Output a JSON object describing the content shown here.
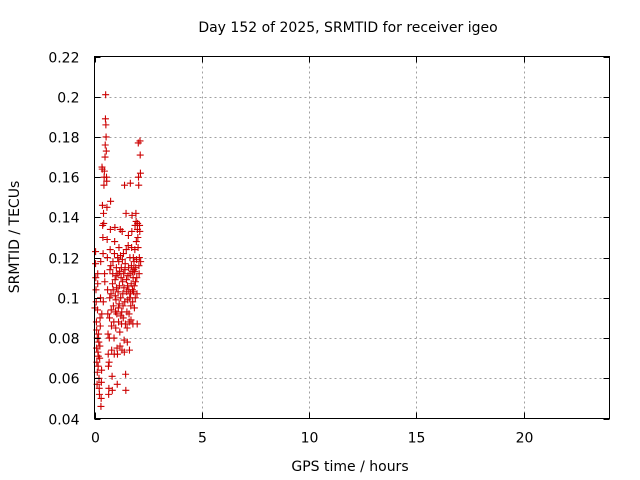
{
  "chart_data": {
    "type": "scatter",
    "title": "Day 152 of 2025, SRMTID for receiver igeo",
    "xlabel": "GPS time / hours",
    "ylabel": "SRMTID / TECUs",
    "xlim": [
      0,
      24
    ],
    "ylim": [
      0.04,
      0.22
    ],
    "xticks": [
      0,
      5,
      10,
      15,
      20
    ],
    "xtick_labels": [
      "0",
      "5",
      "10",
      "15",
      "20"
    ],
    "yticks": [
      0.04,
      0.06,
      0.08,
      0.1,
      0.12,
      0.14,
      0.16,
      0.18,
      0.2,
      0.22
    ],
    "ytick_labels": [
      "0.04",
      "0.06",
      "0.08",
      "0.1",
      "0.12",
      "0.14",
      "0.16",
      "0.18",
      "0.2",
      "0.22"
    ],
    "grid": true,
    "marker": "plus",
    "color": "#cc0000",
    "series": [
      {
        "points": [
          [
            0.02,
            0.095
          ],
          [
            0.05,
            0.117
          ],
          [
            0.05,
            0.123
          ],
          [
            0.06,
            0.11
          ],
          [
            0.07,
            0.104
          ],
          [
            0.08,
            0.098
          ],
          [
            0.09,
            0.088
          ],
          [
            0.1,
            0.084
          ],
          [
            0.1,
            0.075
          ],
          [
            0.11,
            0.068
          ],
          [
            0.12,
            0.057
          ],
          [
            0.13,
            0.063
          ],
          [
            0.13,
            0.08
          ],
          [
            0.14,
            0.094
          ],
          [
            0.15,
            0.112
          ],
          [
            0.15,
            0.107
          ],
          [
            0.16,
            0.073
          ],
          [
            0.17,
            0.066
          ],
          [
            0.18,
            0.071
          ],
          [
            0.19,
            0.082
          ],
          [
            0.2,
            0.078
          ],
          [
            0.21,
            0.06
          ],
          [
            0.22,
            0.055
          ],
          [
            0.23,
            0.052
          ],
          [
            0.24,
            0.07
          ],
          [
            0.25,
            0.076
          ],
          [
            0.26,
            0.09
          ],
          [
            0.27,
            0.086
          ],
          [
            0.28,
            0.1
          ],
          [
            0.29,
            0.118
          ],
          [
            0.3,
            0.046
          ],
          [
            0.31,
            0.05
          ],
          [
            0.32,
            0.058
          ],
          [
            0.33,
            0.064
          ],
          [
            0.34,
            0.092
          ],
          [
            0.35,
            0.165
          ],
          [
            0.36,
            0.164
          ],
          [
            0.37,
            0.146
          ],
          [
            0.38,
            0.136
          ],
          [
            0.39,
            0.13
          ],
          [
            0.4,
            0.122
          ],
          [
            0.41,
            0.098
          ],
          [
            0.42,
            0.142
          ],
          [
            0.43,
            0.137
          ],
          [
            0.44,
            0.156
          ],
          [
            0.45,
            0.16
          ],
          [
            0.46,
            0.163
          ],
          [
            0.47,
            0.112
          ],
          [
            0.48,
            0.108
          ],
          [
            0.49,
            0.17
          ],
          [
            0.5,
            0.176
          ],
          [
            0.51,
            0.189
          ],
          [
            0.52,
            0.201
          ],
          [
            0.53,
            0.186
          ],
          [
            0.54,
            0.18
          ],
          [
            0.55,
            0.173
          ],
          [
            0.56,
            0.16
          ],
          [
            0.57,
            0.158
          ],
          [
            0.58,
            0.145
          ],
          [
            0.59,
            0.129
          ],
          [
            0.6,
            0.12
          ],
          [
            0.61,
            0.104
          ],
          [
            0.62,
            0.092
          ],
          [
            0.63,
            0.082
          ],
          [
            0.64,
            0.072
          ],
          [
            0.65,
            0.066
          ],
          [
            0.66,
            0.052
          ],
          [
            0.67,
            0.055
          ],
          [
            0.68,
            0.068
          ],
          [
            0.69,
            0.08
          ],
          [
            0.7,
            0.09
          ],
          [
            0.71,
            0.1
          ],
          [
            0.72,
            0.114
          ],
          [
            0.73,
            0.124
          ],
          [
            0.74,
            0.134
          ],
          [
            0.75,
            0.148
          ],
          [
            0.76,
            0.116
          ],
          [
            0.77,
            0.102
          ],
          [
            0.78,
            0.094
          ],
          [
            0.79,
            0.086
          ],
          [
            0.8,
            0.074
          ],
          [
            0.82,
            0.061
          ],
          [
            0.83,
            0.054
          ],
          [
            0.84,
            0.107
          ],
          [
            0.85,
            0.112
          ],
          [
            0.86,
            0.118
          ],
          [
            0.87,
            0.104
          ],
          [
            0.88,
            0.096
          ],
          [
            0.9,
            0.088
          ],
          [
            0.91,
            0.08
          ],
          [
            0.92,
            0.072
          ],
          [
            0.93,
            0.122
          ],
          [
            0.94,
            0.128
          ],
          [
            0.95,
            0.135
          ],
          [
            0.96,
            0.109
          ],
          [
            0.97,
            0.101
          ],
          [
            0.98,
            0.093
          ],
          [
            0.99,
            0.085
          ],
          [
            1.0,
            0.099
          ],
          [
            1.01,
            0.111
          ],
          [
            1.02,
            0.115
          ],
          [
            1.03,
            0.105
          ],
          [
            1.04,
            0.092
          ],
          [
            1.05,
            0.075
          ],
          [
            1.06,
            0.057
          ],
          [
            1.07,
            0.072
          ],
          [
            1.08,
            0.12
          ],
          [
            1.09,
            0.112
          ],
          [
            1.1,
            0.103
          ],
          [
            1.11,
            0.095
          ],
          [
            1.12,
            0.088
          ],
          [
            1.13,
            0.118
          ],
          [
            1.14,
            0.125
          ],
          [
            1.15,
            0.097
          ],
          [
            1.16,
            0.106
          ],
          [
            1.17,
            0.113
          ],
          [
            1.18,
            0.083
          ],
          [
            1.19,
            0.076
          ],
          [
            1.2,
            0.134
          ],
          [
            1.21,
            0.121
          ],
          [
            1.22,
            0.1
          ],
          [
            1.23,
            0.091
          ],
          [
            1.24,
            0.11
          ],
          [
            1.25,
            0.115
          ],
          [
            1.26,
            0.087
          ],
          [
            1.27,
            0.093
          ],
          [
            1.28,
            0.074
          ],
          [
            1.29,
            0.133
          ],
          [
            1.3,
            0.119
          ],
          [
            1.31,
            0.108
          ],
          [
            1.32,
            0.102
          ],
          [
            1.33,
            0.096
          ],
          [
            1.34,
            0.09
          ],
          [
            1.35,
            0.122
          ],
          [
            1.36,
            0.112
          ],
          [
            1.37,
            0.105
          ],
          [
            1.38,
            0.079
          ],
          [
            1.39,
            0.073
          ],
          [
            1.4,
            0.156
          ],
          [
            1.41,
            0.098
          ],
          [
            1.42,
            0.114
          ],
          [
            1.43,
            0.117
          ],
          [
            1.44,
            0.087
          ],
          [
            1.45,
            0.062
          ],
          [
            1.46,
            0.054
          ],
          [
            1.47,
            0.142
          ],
          [
            1.48,
            0.124
          ],
          [
            1.49,
            0.109
          ],
          [
            1.5,
            0.103
          ],
          [
            1.51,
            0.093
          ],
          [
            1.52,
            0.085
          ],
          [
            1.53,
            0.078
          ],
          [
            1.54,
            0.106
          ],
          [
            1.55,
            0.099
          ],
          [
            1.56,
            0.111
          ],
          [
            1.57,
            0.126
          ],
          [
            1.58,
            0.131
          ],
          [
            1.59,
            0.115
          ],
          [
            1.6,
            0.104
          ],
          [
            1.61,
            0.092
          ],
          [
            1.62,
            0.088
          ],
          [
            1.63,
            0.074
          ],
          [
            1.64,
            0.1
          ],
          [
            1.65,
            0.12
          ],
          [
            1.66,
            0.112
          ],
          [
            1.67,
            0.157
          ],
          [
            1.68,
            0.102
          ],
          [
            1.69,
            0.096
          ],
          [
            1.7,
            0.089
          ],
          [
            1.71,
            0.107
          ],
          [
            1.72,
            0.116
          ],
          [
            1.73,
            0.125
          ],
          [
            1.74,
            0.133
          ],
          [
            1.75,
            0.141
          ],
          [
            1.76,
            0.113
          ],
          [
            1.77,
            0.104
          ],
          [
            1.78,
            0.098
          ],
          [
            1.79,
            0.087
          ],
          [
            1.8,
            0.11
          ],
          [
            1.81,
            0.12
          ],
          [
            1.82,
            0.103
          ],
          [
            1.83,
            0.114
          ],
          [
            1.84,
            0.118
          ],
          [
            1.85,
            0.106
          ],
          [
            1.86,
            0.095
          ],
          [
            1.87,
            0.113
          ],
          [
            1.88,
            0.124
          ],
          [
            1.89,
            0.136
          ],
          [
            1.9,
            0.1
          ],
          [
            1.91,
            0.108
          ],
          [
            1.92,
            0.115
          ],
          [
            1.93,
            0.142
          ],
          [
            1.94,
            0.138
          ],
          [
            1.95,
            0.128
          ],
          [
            1.96,
            0.119
          ],
          [
            1.97,
            0.11
          ],
          [
            1.98,
            0.102
          ],
          [
            1.99,
            0.087
          ],
          [
            2.0,
            0.134
          ],
          [
            2.01,
            0.137
          ],
          [
            2.02,
            0.13
          ],
          [
            2.03,
            0.125
          ],
          [
            2.04,
            0.177
          ],
          [
            2.05,
            0.16
          ],
          [
            2.06,
            0.156
          ],
          [
            2.07,
            0.116
          ],
          [
            2.08,
            0.112
          ],
          [
            2.09,
            0.12
          ],
          [
            2.1,
            0.136
          ],
          [
            2.11,
            0.133
          ],
          [
            2.12,
            0.178
          ],
          [
            2.13,
            0.171
          ],
          [
            2.14,
            0.162
          ],
          [
            2.15,
            0.118
          ]
        ]
      }
    ]
  }
}
